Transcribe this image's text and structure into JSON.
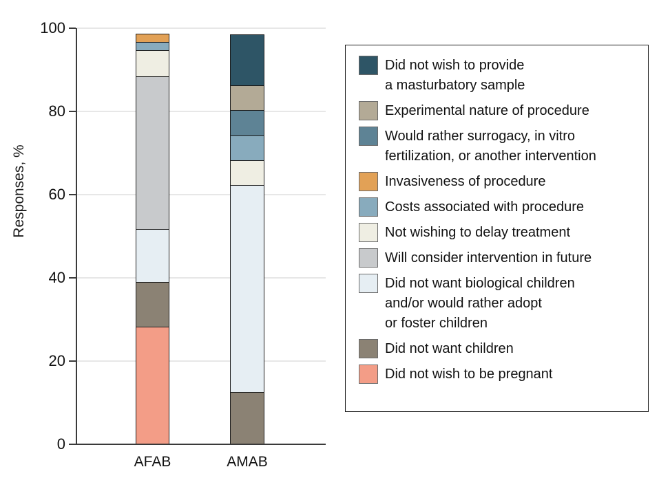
{
  "chart_data": {
    "type": "bar",
    "subtype": "stacked-vertical",
    "title": "",
    "xlabel": "",
    "ylabel": "Responses, %",
    "categories": [
      "AFAB",
      "AMAB"
    ],
    "ylim": [
      0,
      100
    ],
    "yticks": [
      0,
      20,
      40,
      60,
      80,
      100
    ],
    "grid": "horizontal",
    "legend_position": "right",
    "stack_order": "reverse-legend (first legend entry is top of stack)",
    "series": [
      {
        "name": "Did not wish to provide\na masturbatory sample",
        "color": "#2E5566",
        "values": [
          0,
          12.5
        ]
      },
      {
        "name": "Experimental nature of procedure",
        "color": "#B3AA96",
        "values": [
          0,
          6.25
        ]
      },
      {
        "name": "Would rather surrogacy, in vitro\nfertilization, or another intervention",
        "color": "#5E8395",
        "values": [
          0,
          6.25
        ]
      },
      {
        "name": "Invasiveness of procedure",
        "color": "#E2A156",
        "values": [
          2.2,
          0
        ]
      },
      {
        "name": "Costs associated with procedure",
        "color": "#88ABBD",
        "values": [
          2.2,
          6.25
        ]
      },
      {
        "name": "Not wishing to delay treatment",
        "color": "#EFEEE3",
        "values": [
          6.5,
          6.25
        ]
      },
      {
        "name": "Will consider intervention in future",
        "color": "#C8CACC",
        "values": [
          37.0,
          0
        ]
      },
      {
        "name": "Did not want biological children\nand/or would rather adopt\nor foster children",
        "color": "#E6EEF3",
        "values": [
          13.0,
          50.0
        ]
      },
      {
        "name": "Did not want children",
        "color": "#8B8274",
        "values": [
          10.9,
          12.5
        ]
      },
      {
        "name": "Did not wish to be pregnant",
        "color": "#F39D87",
        "values": [
          28.3,
          0
        ]
      }
    ],
    "colors": {
      "axis": "#3a3a3a",
      "gridline": "#e7e7e7",
      "bar_outline": "#1b1b1b",
      "legend_border": "#1b1b1b",
      "swatch_border": "#6a6a6a"
    }
  }
}
